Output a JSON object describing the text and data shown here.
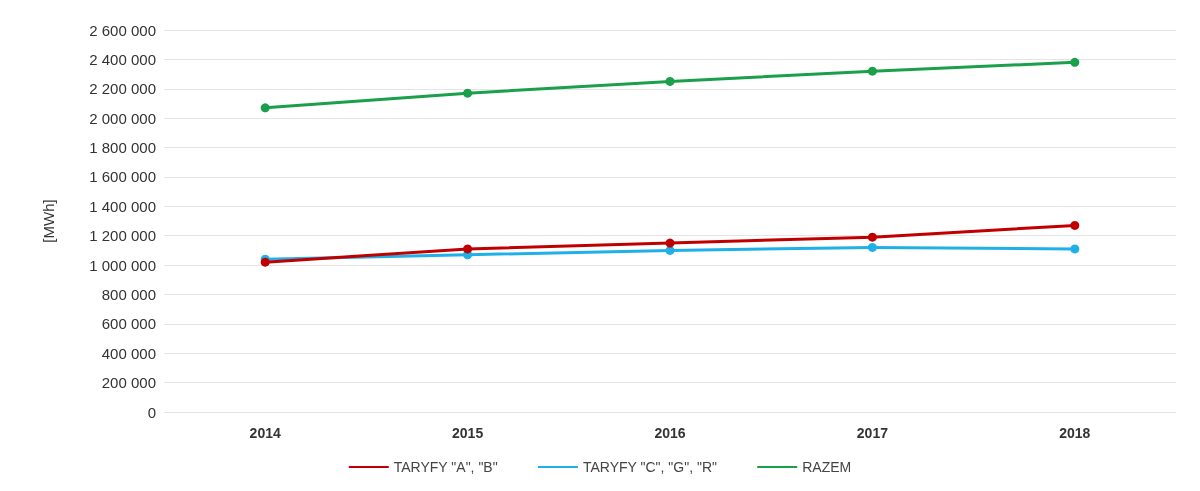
{
  "chart_data": {
    "type": "line",
    "ylabel": "[MWh]",
    "categories": [
      "2014",
      "2015",
      "2016",
      "2017",
      "2018"
    ],
    "series": [
      {
        "name": "TARYFY \"A\", \"B\"",
        "color": "#c00000",
        "values": [
          1020000,
          1110000,
          1150000,
          1190000,
          1270000
        ]
      },
      {
        "name": "TARYFY \"C\", \"G\", \"R\"",
        "color": "#1fb0e8",
        "values": [
          1040000,
          1070000,
          1100000,
          1120000,
          1110000
        ]
      },
      {
        "name": "RAZEM",
        "color": "#1aa04a",
        "values": [
          2070000,
          2170000,
          2250000,
          2320000,
          2380000
        ]
      }
    ],
    "ylim": [
      0,
      2600000
    ],
    "yticks": [
      {
        "value": 0,
        "label": "0"
      },
      {
        "value": 200000,
        "label": "200 000"
      },
      {
        "value": 400000,
        "label": "400 000"
      },
      {
        "value": 600000,
        "label": "600 000"
      },
      {
        "value": 800000,
        "label": "800 000"
      },
      {
        "value": 1000000,
        "label": "1 000 000"
      },
      {
        "value": 1200000,
        "label": "1 200 000"
      },
      {
        "value": 1400000,
        "label": "1 400 000"
      },
      {
        "value": 1600000,
        "label": "1 600 000"
      },
      {
        "value": 1800000,
        "label": "1 800 000"
      },
      {
        "value": 2000000,
        "label": "2 000 000"
      },
      {
        "value": 2200000,
        "label": "2 200 000"
      },
      {
        "value": 2400000,
        "label": "2 400 000"
      },
      {
        "value": 2600000,
        "label": "2 600 000"
      }
    ],
    "grid": "y",
    "legend": "bottom",
    "marker": "circle",
    "line_style": "solid"
  }
}
